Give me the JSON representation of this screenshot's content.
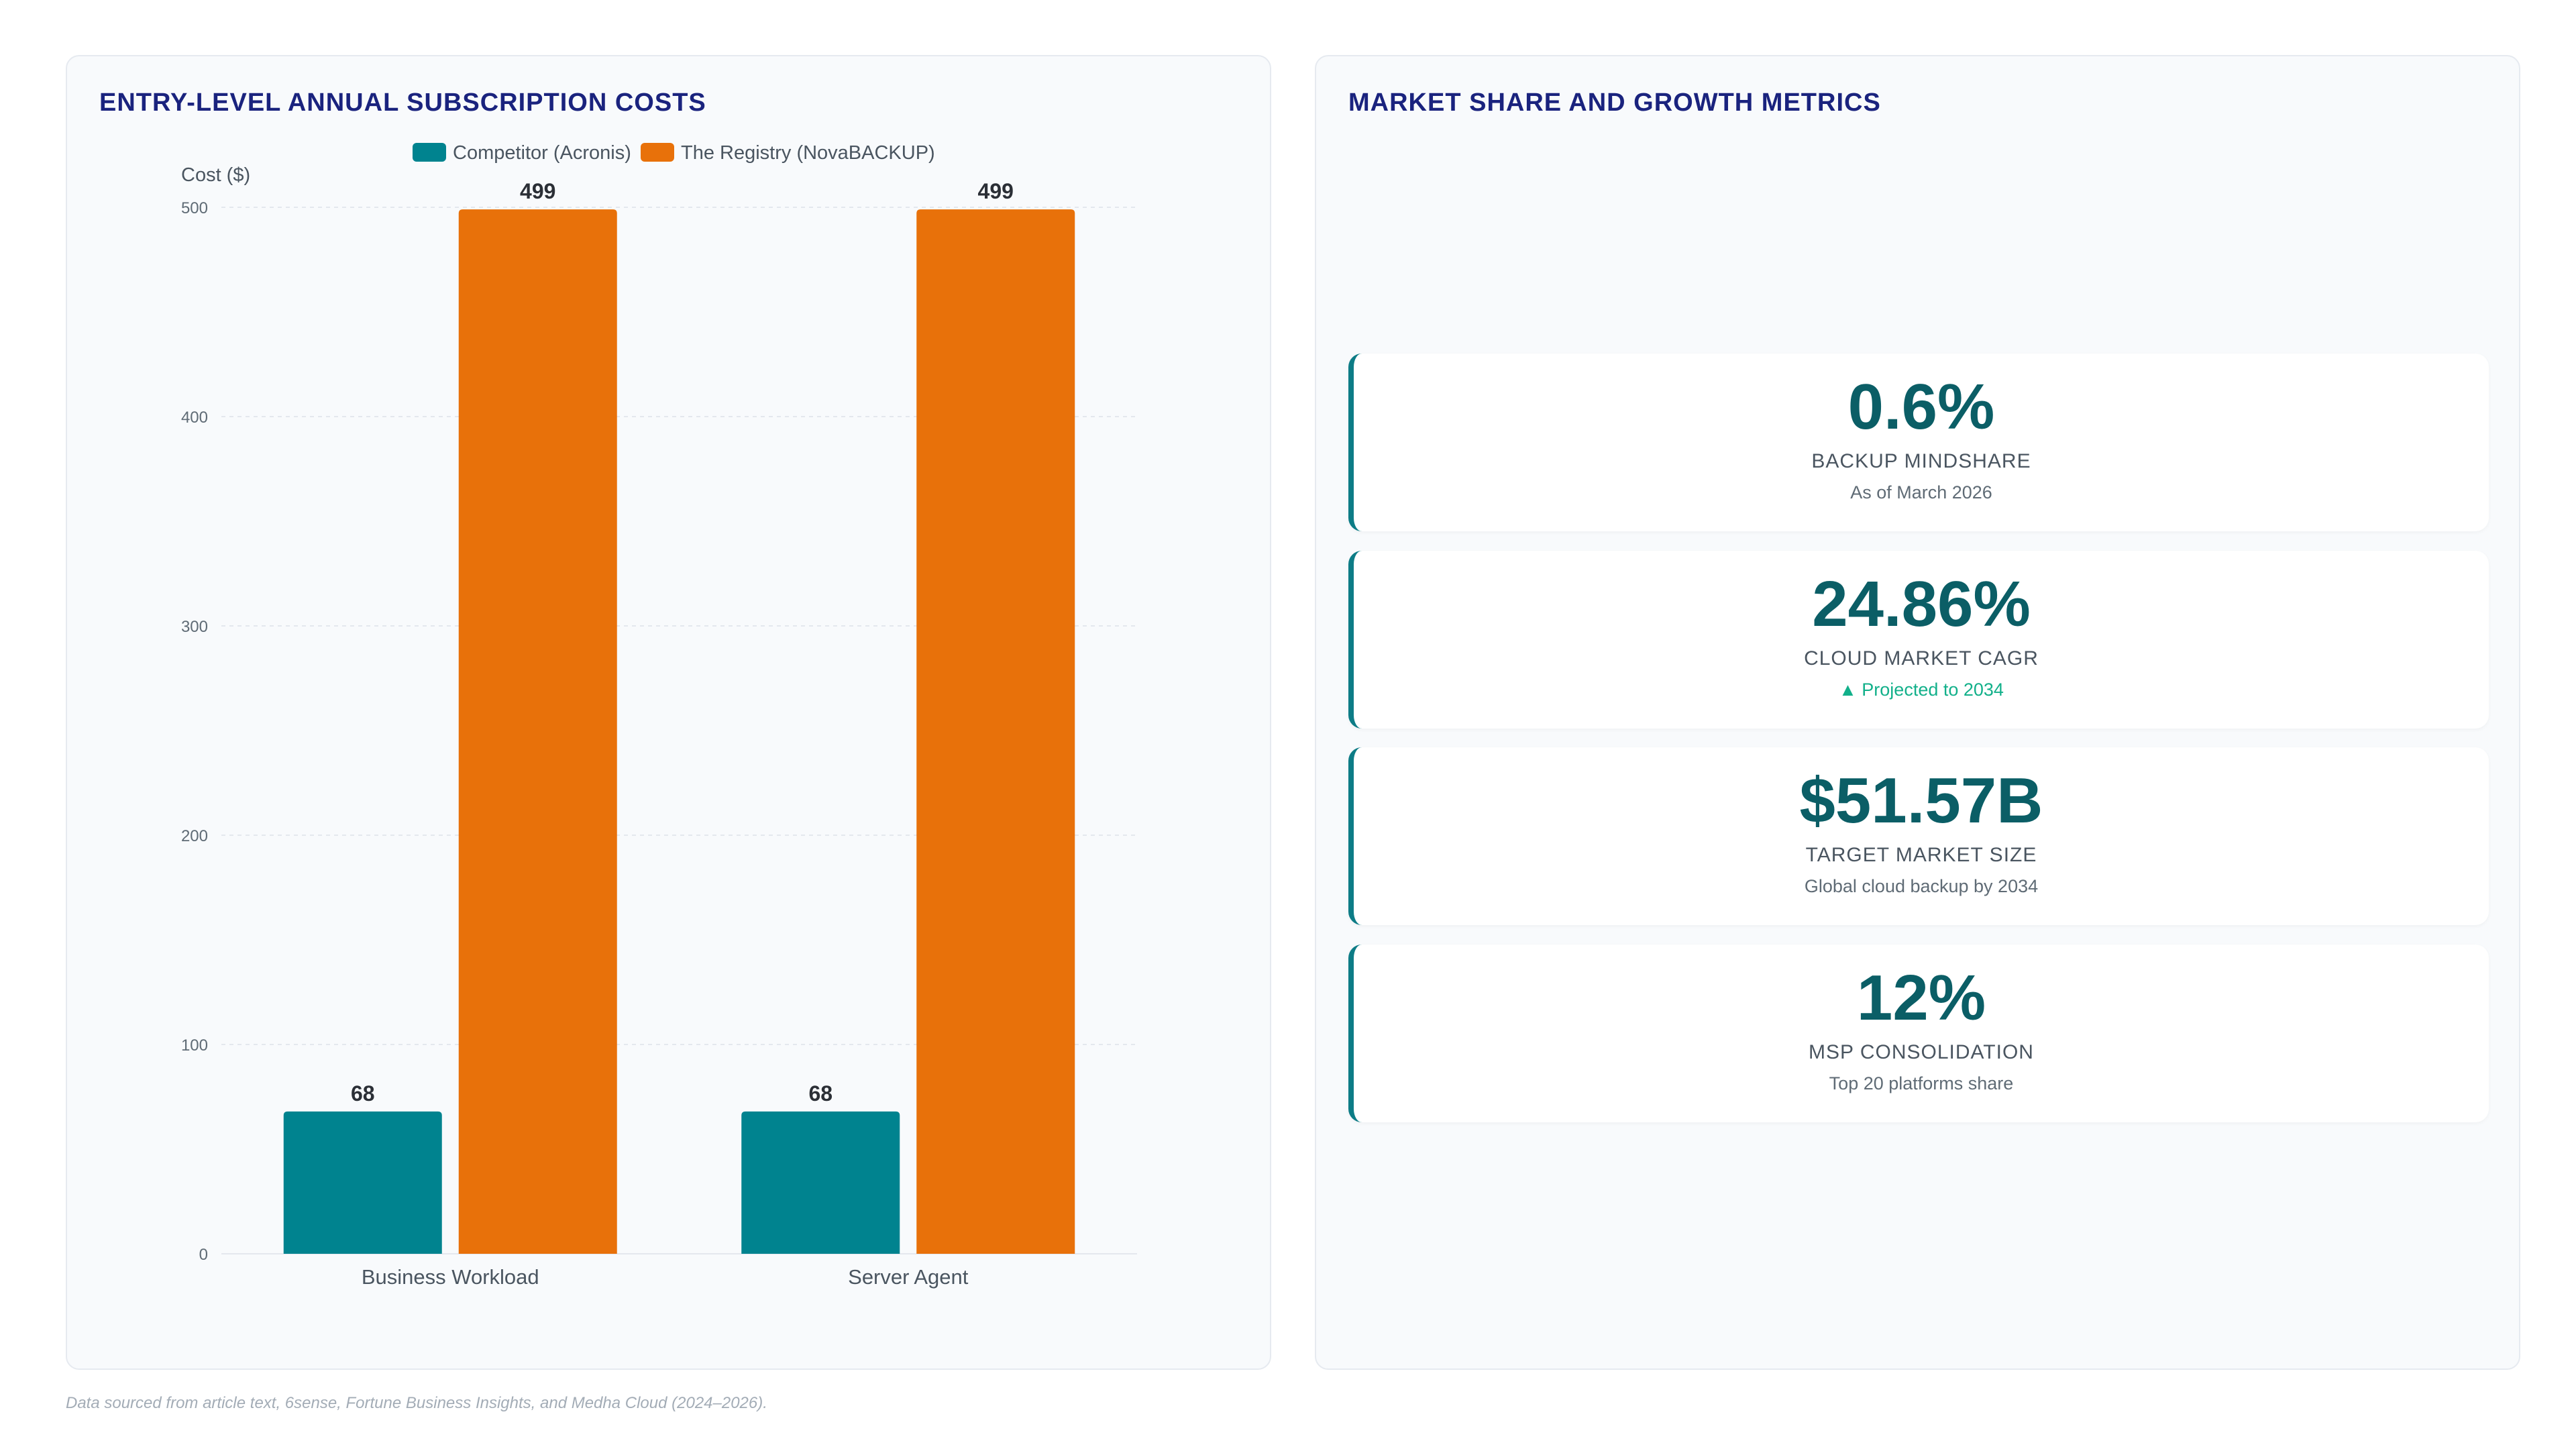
{
  "left_panel": {
    "title": "ENTRY-LEVEL ANNUAL SUBSCRIPTION COSTS"
  },
  "chart_data": {
    "type": "bar",
    "title": "",
    "xlabel": "",
    "ylabel": "Cost ($)",
    "ylim": [
      0,
      500
    ],
    "yticks": [
      0,
      100,
      200,
      300,
      400,
      500
    ],
    "grid": true,
    "legend_position": "top-center",
    "categories": [
      "Business Workload",
      "Server Agent"
    ],
    "series": [
      {
        "name": "Competitor (Acronis)",
        "color": "#00838f",
        "values": [
          68,
          68
        ]
      },
      {
        "name": "The Registry (NovaBACKUP)",
        "color": "#e8710a",
        "values": [
          499,
          499
        ]
      }
    ]
  },
  "right_panel": {
    "title": "MARKET SHARE AND GROWTH METRICS",
    "metrics": [
      {
        "value": "0.6%",
        "label": "BACKUP MINDSHARE",
        "sub": "As of March 2026",
        "trend": "none"
      },
      {
        "value": "24.86%",
        "label": "CLOUD MARKET CAGR",
        "sub": "▲ Projected to 2034",
        "trend": "up"
      },
      {
        "value": "$51.57B",
        "label": "TARGET MARKET SIZE",
        "sub": "Global cloud backup by 2034",
        "trend": "none"
      },
      {
        "value": "12%",
        "label": "MSP CONSOLIDATION",
        "sub": "Top 20 platforms share",
        "trend": "none"
      }
    ]
  },
  "footnote": "Data sourced from article text, 6sense, Fortune Business Insights, and Medha Cloud (2024–2026)."
}
